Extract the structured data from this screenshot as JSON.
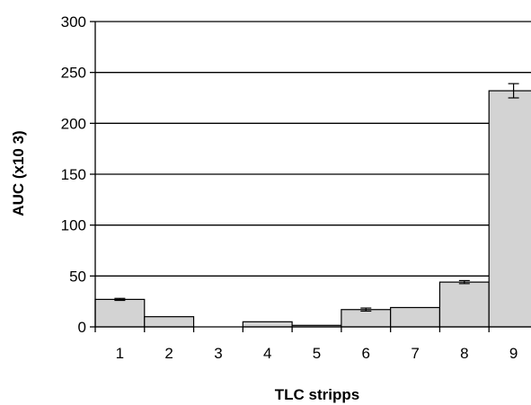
{
  "chart_data": {
    "type": "bar",
    "title": "",
    "xlabel": "TLC stripps",
    "ylabel": "AUC (x10 3)",
    "categories": [
      "1",
      "2",
      "3",
      "4",
      "5",
      "6",
      "7",
      "8",
      "9"
    ],
    "values": [
      27,
      10,
      0,
      5,
      1.5,
      17,
      19,
      44,
      232
    ],
    "errors": [
      1,
      0,
      0,
      0,
      0,
      1.5,
      0,
      1.5,
      7
    ],
    "ylim": [
      0,
      300
    ],
    "yticks": [
      0,
      50,
      100,
      150,
      200,
      250,
      300
    ],
    "grid": true,
    "colors": {
      "bar_fill": "#d3d3d3",
      "bar_stroke": "#000000",
      "grid": "#000000"
    }
  }
}
